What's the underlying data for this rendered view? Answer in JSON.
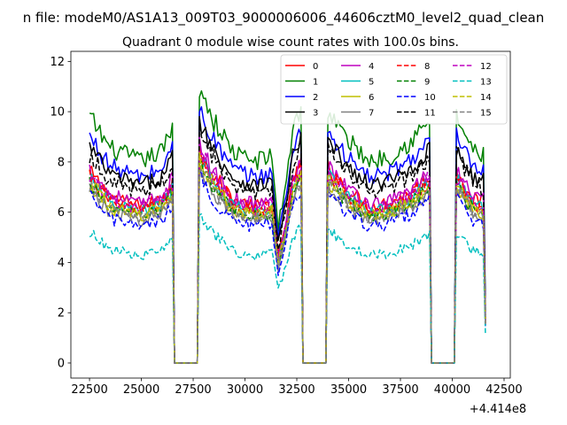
{
  "suptitle": "n file: modeM0/AS1A13_009T03_9000006006_44606cztM0_level2_quad_clean",
  "chart_data": {
    "type": "line",
    "title": "Quadrant 0 module wise count rates with 100.0s bins.",
    "xlabel": "",
    "ylabel": "",
    "x_offset_label": "+4.414e8",
    "xlim": [
      21600,
      42800
    ],
    "ylim": [
      -0.6,
      12.4
    ],
    "xticks": [
      22500,
      25000,
      27500,
      30000,
      32500,
      35000,
      37500,
      40000,
      42500
    ],
    "yticks": [
      0,
      2,
      4,
      6,
      8,
      10,
      12
    ],
    "grid": false,
    "legend_position": "top-right",
    "legend_columns": 4,
    "bin_width": 100,
    "x_start": 22500,
    "x_end": 41600,
    "gaps": [
      [
        26600,
        27700
      ],
      [
        32800,
        33900
      ],
      [
        39000,
        40100
      ]
    ],
    "segment_shape": [
      {
        "x": 22500,
        "f": 1.0
      },
      {
        "x": 23500,
        "f": 0.87
      },
      {
        "x": 25000,
        "f": 0.82
      },
      {
        "x": 26000,
        "f": 0.86
      },
      {
        "x": 26500,
        "f": 0.95
      },
      {
        "x": 27800,
        "f": 1.13
      },
      {
        "x": 28500,
        "f": 0.98
      },
      {
        "x": 29500,
        "f": 0.85
      },
      {
        "x": 30500,
        "f": 0.82
      },
      {
        "x": 31300,
        "f": 0.84
      },
      {
        "x": 31600,
        "f": 0.55
      },
      {
        "x": 32000,
        "f": 0.75
      },
      {
        "x": 32300,
        "f": 0.95
      },
      {
        "x": 32700,
        "f": 1.04
      },
      {
        "x": 34000,
        "f": 1.02
      },
      {
        "x": 35000,
        "f": 0.9
      },
      {
        "x": 36000,
        "f": 0.82
      },
      {
        "x": 37000,
        "f": 0.84
      },
      {
        "x": 38000,
        "f": 0.9
      },
      {
        "x": 38900,
        "f": 0.98
      },
      {
        "x": 40200,
        "f": 1.0
      },
      {
        "x": 41000,
        "f": 0.86
      },
      {
        "x": 41500,
        "f": 0.84
      },
      {
        "x": 41600,
        "f": 0.22
      }
    ],
    "series": [
      {
        "name": "0",
        "color": "#ff0000",
        "dash": false,
        "level": 7.6
      },
      {
        "name": "1",
        "color": "#008000",
        "dash": false,
        "level": 9.8
      },
      {
        "name": "2",
        "color": "#0000ff",
        "dash": false,
        "level": 9.0
      },
      {
        "name": "3",
        "color": "#000000",
        "dash": false,
        "level": 8.6
      },
      {
        "name": "4",
        "color": "#bf00bf",
        "dash": false,
        "level": 7.7
      },
      {
        "name": "5",
        "color": "#00bfbf",
        "dash": false,
        "level": 7.3
      },
      {
        "name": "6",
        "color": "#bfbf00",
        "dash": false,
        "level": 7.1
      },
      {
        "name": "7",
        "color": "#808080",
        "dash": false,
        "level": 6.9
      },
      {
        "name": "8",
        "color": "#ff0000",
        "dash": true,
        "level": 7.4
      },
      {
        "name": "9",
        "color": "#008000",
        "dash": true,
        "level": 7.1
      },
      {
        "name": "10",
        "color": "#0000ff",
        "dash": true,
        "level": 6.6
      },
      {
        "name": "11",
        "color": "#000000",
        "dash": true,
        "level": 8.3
      },
      {
        "name": "12",
        "color": "#bf00bf",
        "dash": true,
        "level": 7.5
      },
      {
        "name": "13",
        "color": "#00bfbf",
        "dash": true,
        "level": 5.2
      },
      {
        "name": "14",
        "color": "#bfbf00",
        "dash": true,
        "level": 7.2
      },
      {
        "name": "15",
        "color": "#808080",
        "dash": true,
        "level": 7.0
      }
    ]
  }
}
